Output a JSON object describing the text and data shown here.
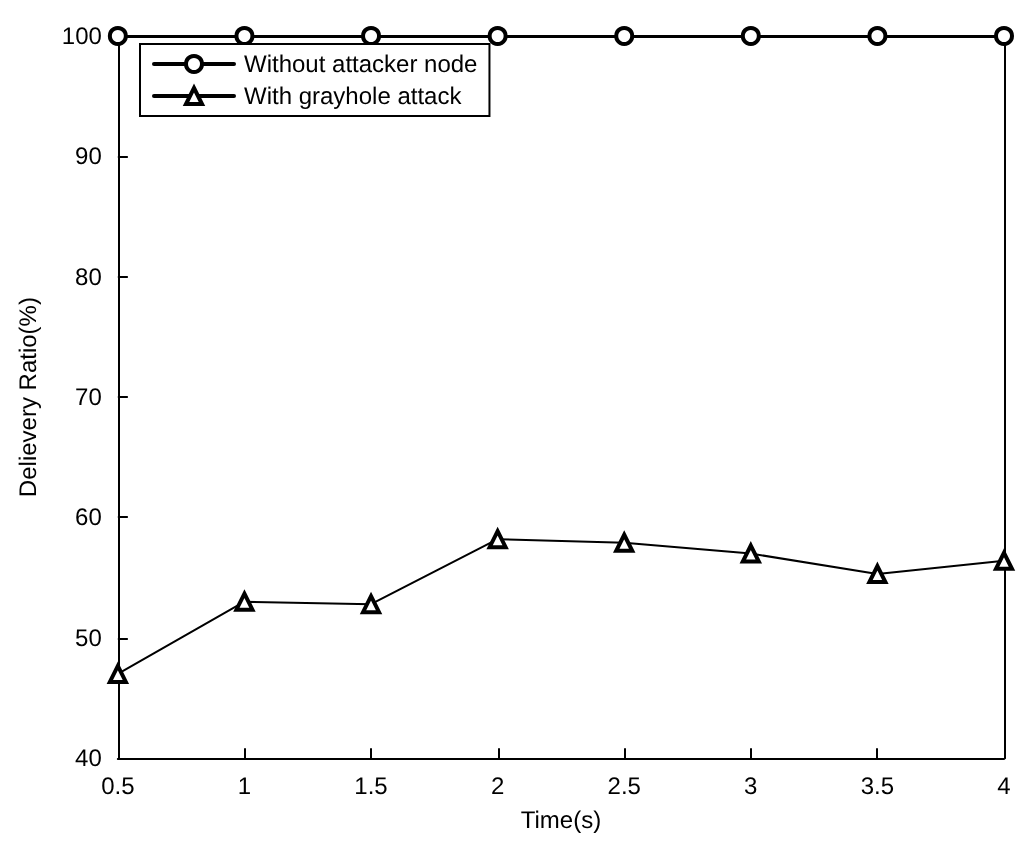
{
  "chart_data": {
    "type": "line",
    "xlabel": "Time(s)",
    "ylabel": "Delievery Ratio(%)",
    "x": [
      0.5,
      1,
      1.5,
      2,
      2.5,
      3,
      3.5,
      4
    ],
    "series": [
      {
        "name": "Without attacker node",
        "color": "#000000",
        "marker": "circle",
        "values": [
          100,
          100,
          100,
          100,
          100,
          100,
          100,
          100
        ]
      },
      {
        "name": "With grayhole attack",
        "color": "#000000",
        "marker": "triangle",
        "values": [
          47,
          53,
          52.8,
          58.2,
          57.9,
          57,
          55.3,
          56.4
        ]
      }
    ],
    "xlim": [
      0.5,
      4
    ],
    "xticks": [
      0.5,
      1,
      1.5,
      2,
      2.5,
      3,
      3.5,
      4
    ],
    "ylim": [
      40,
      100
    ],
    "yticks": [
      40,
      50,
      60,
      70,
      80,
      90,
      100
    ],
    "grid": false,
    "legend": "top left",
    "line_style": "solid"
  }
}
